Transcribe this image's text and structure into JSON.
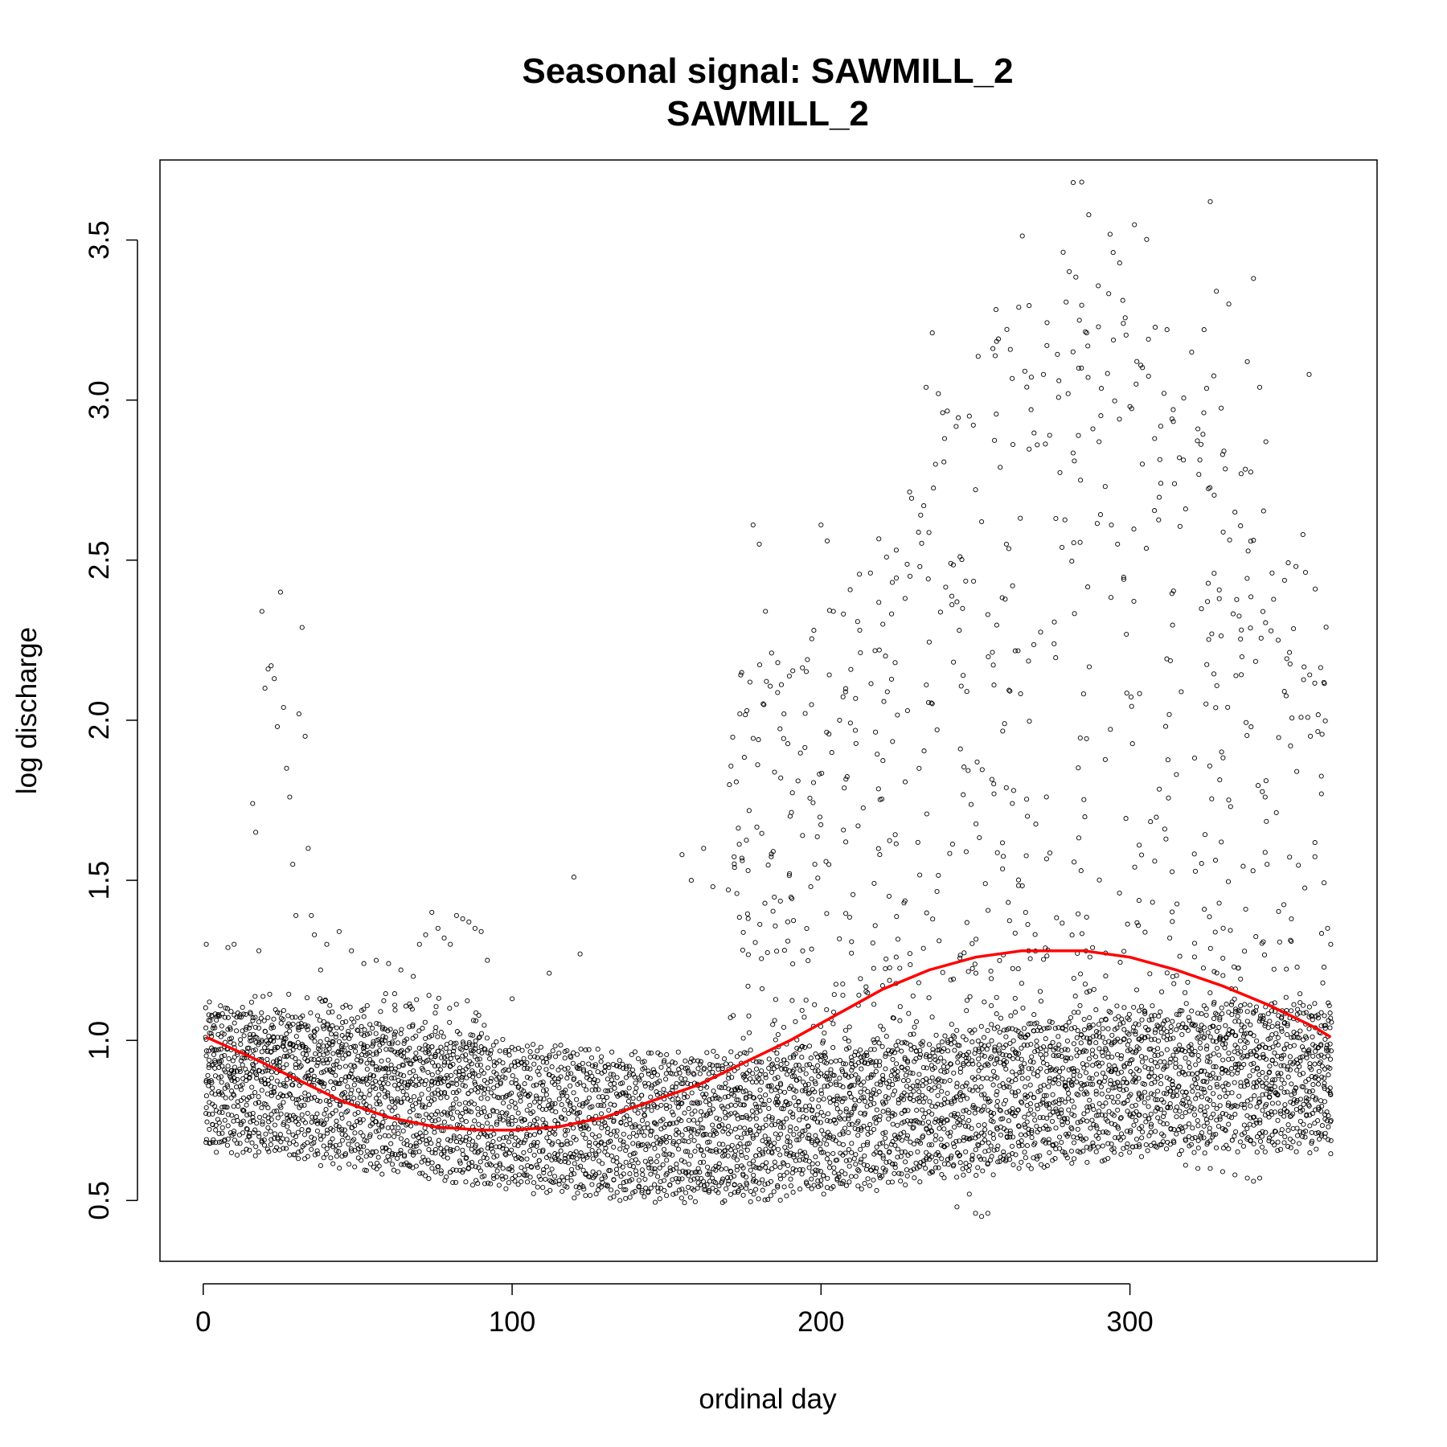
{
  "chart_data": {
    "type": "scatter",
    "title": "Seasonal signal: SAWMILL_2",
    "subtitle": "SAWMILL_2",
    "xlabel": "ordinal day",
    "ylabel": "log discharge",
    "xlim": [
      -14,
      380
    ],
    "ylim": [
      0.31,
      3.75
    ],
    "x_ticks": [
      0,
      100,
      200,
      300
    ],
    "x_tick_labels": [
      "0",
      "100",
      "200",
      "300"
    ],
    "y_ticks": [
      0.5,
      1.0,
      1.5,
      2.0,
      2.5,
      3.0,
      3.5
    ],
    "y_tick_labels": [
      "0.5",
      "1.0",
      "1.5",
      "2.0",
      "2.5",
      "3.0",
      "3.5"
    ],
    "grid": false,
    "legend": "none",
    "point_color": "#000000",
    "series": [
      {
        "type": "scatter",
        "points": [
          [
            1,
            1.3
          ],
          [
            2,
            1.12
          ],
          [
            3,
            0.77
          ],
          [
            4,
            0.72
          ],
          [
            5,
            0.84
          ],
          [
            6,
            0.95
          ],
          [
            8,
            1.29
          ],
          [
            10,
            1.3
          ],
          [
            12,
            1.08
          ],
          [
            13,
            0.78
          ],
          [
            14,
            0.66
          ],
          [
            15,
            0.7
          ],
          [
            16,
            1.74
          ],
          [
            17,
            1.65
          ],
          [
            18,
            1.28
          ],
          [
            19,
            2.34
          ],
          [
            20,
            2.1
          ],
          [
            21,
            2.16
          ],
          [
            22,
            2.17
          ],
          [
            23,
            2.13
          ],
          [
            24,
            1.98
          ],
          [
            25,
            2.4
          ],
          [
            26,
            2.04
          ],
          [
            27,
            1.85
          ],
          [
            28,
            1.76
          ],
          [
            29,
            1.55
          ],
          [
            30,
            1.39
          ],
          [
            31,
            2.02
          ],
          [
            32,
            2.29
          ],
          [
            33,
            1.95
          ],
          [
            34,
            1.6
          ],
          [
            35,
            1.39
          ],
          [
            36,
            1.33
          ],
          [
            38,
            1.22
          ],
          [
            40,
            1.3
          ],
          [
            44,
            1.34
          ],
          [
            48,
            1.28
          ],
          [
            52,
            1.24
          ],
          [
            56,
            1.25
          ],
          [
            60,
            1.24
          ],
          [
            64,
            1.22
          ],
          [
            68,
            1.2
          ],
          [
            70,
            1.3
          ],
          [
            72,
            1.33
          ],
          [
            74,
            1.4
          ],
          [
            76,
            1.35
          ],
          [
            78,
            1.32
          ],
          [
            80,
            1.3
          ],
          [
            82,
            1.39
          ],
          [
            84,
            1.38
          ],
          [
            86,
            1.37
          ],
          [
            88,
            1.35
          ],
          [
            90,
            1.34
          ],
          [
            92,
            1.25
          ],
          [
            100,
            1.13
          ],
          [
            112,
            1.21
          ],
          [
            120,
            1.51
          ],
          [
            122,
            1.27
          ],
          [
            155,
            1.58
          ],
          [
            158,
            1.5
          ],
          [
            162,
            1.6
          ],
          [
            165,
            1.48
          ],
          [
            170,
            1.47
          ],
          [
            172,
            1.54
          ],
          [
            176,
            2.03
          ],
          [
            178,
            2.61
          ],
          [
            180,
            2.55
          ],
          [
            182,
            2.34
          ],
          [
            184,
            2.21
          ],
          [
            186,
            2.18
          ],
          [
            188,
            2.02
          ],
          [
            190,
            1.7
          ],
          [
            194,
            1.64
          ],
          [
            198,
            1.55
          ],
          [
            200,
            2.61
          ],
          [
            202,
            2.56
          ],
          [
            204,
            2.34
          ],
          [
            206,
            2.0
          ],
          [
            208,
            1.62
          ],
          [
            212,
            1.67
          ],
          [
            216,
            2.46
          ],
          [
            220,
            2.3
          ],
          [
            224,
            2.18
          ],
          [
            228,
            2.03
          ],
          [
            232,
            2.48
          ],
          [
            234,
            3.04
          ],
          [
            236,
            3.21
          ],
          [
            238,
            3.02
          ],
          [
            240,
            2.88
          ],
          [
            242,
            2.49
          ],
          [
            244,
            2.37
          ],
          [
            246,
            2.14
          ],
          [
            248,
            2.95
          ],
          [
            250,
            2.72
          ],
          [
            252,
            2.62
          ],
          [
            254,
            2.33
          ],
          [
            256,
            2.11
          ],
          [
            258,
            2.79
          ],
          [
            260,
            2.55
          ],
          [
            262,
            2.42
          ],
          [
            264,
            3.29
          ],
          [
            266,
            3.09
          ],
          [
            268,
            2.97
          ],
          [
            270,
            2.86
          ],
          [
            272,
            3.08
          ],
          [
            274,
            2.89
          ],
          [
            276,
            2.63
          ],
          [
            278,
            2.54
          ],
          [
            280,
            3.02
          ],
          [
            282,
            2.81
          ],
          [
            284,
            2.75
          ],
          [
            286,
            3.21
          ],
          [
            288,
            2.91
          ],
          [
            290,
            2.87
          ],
          [
            292,
            2.73
          ],
          [
            294,
            2.61
          ],
          [
            296,
            2.55
          ],
          [
            298,
            2.44
          ],
          [
            300,
            2.98
          ],
          [
            302,
            3.05
          ],
          [
            304,
            2.8
          ],
          [
            306,
            3.19
          ],
          [
            308,
            2.88
          ],
          [
            310,
            2.74
          ],
          [
            312,
            3.22
          ],
          [
            314,
            2.97
          ],
          [
            316,
            2.82
          ],
          [
            318,
            2.66
          ],
          [
            320,
            3.15
          ],
          [
            322,
            2.91
          ],
          [
            324,
            3.22
          ],
          [
            326,
            3.62
          ],
          [
            328,
            3.34
          ],
          [
            330,
            2.83
          ],
          [
            332,
            3.3
          ],
          [
            334,
            2.65
          ],
          [
            336,
            2.77
          ],
          [
            338,
            3.12
          ],
          [
            340,
            3.38
          ],
          [
            342,
            3.04
          ],
          [
            344,
            2.87
          ],
          [
            346,
            2.46
          ],
          [
            348,
            2.25
          ],
          [
            350,
            2.09
          ],
          [
            352,
            1.92
          ],
          [
            354,
            1.84
          ],
          [
            356,
            2.58
          ],
          [
            358,
            3.08
          ],
          [
            360,
            2.41
          ],
          [
            362,
            1.77
          ],
          [
            364,
            1.35
          ],
          [
            365,
            1.3
          ],
          [
            244,
            0.48
          ],
          [
            248,
            0.52
          ],
          [
            250,
            0.46
          ],
          [
            252,
            0.45
          ],
          [
            254,
            0.46
          ],
          [
            160,
            0.57
          ],
          [
            164,
            0.56
          ],
          [
            168,
            0.56
          ],
          [
            172,
            0.55
          ],
          [
            176,
            0.55
          ],
          [
            178,
            0.56
          ],
          [
            318,
            0.61
          ],
          [
            322,
            0.6
          ],
          [
            326,
            0.6
          ],
          [
            330,
            0.59
          ],
          [
            334,
            0.58
          ],
          [
            338,
            0.57
          ],
          [
            340,
            0.56
          ],
          [
            342,
            0.57
          ]
        ]
      },
      {
        "type": "line",
        "name": "",
        "x": [
          1,
          15,
          30,
          45,
          60,
          75,
          90,
          100,
          115,
          130,
          145,
          160,
          175,
          190,
          205,
          220,
          235,
          250,
          265,
          275,
          285,
          300,
          315,
          330,
          345,
          360,
          365
        ],
        "y": [
          1.01,
          0.95,
          0.88,
          0.81,
          0.76,
          0.73,
          0.72,
          0.72,
          0.73,
          0.76,
          0.81,
          0.86,
          0.93,
          1.0,
          1.08,
          1.16,
          1.22,
          1.26,
          1.28,
          1.28,
          1.28,
          1.26,
          1.22,
          1.17,
          1.11,
          1.04,
          1.01
        ]
      }
    ]
  }
}
